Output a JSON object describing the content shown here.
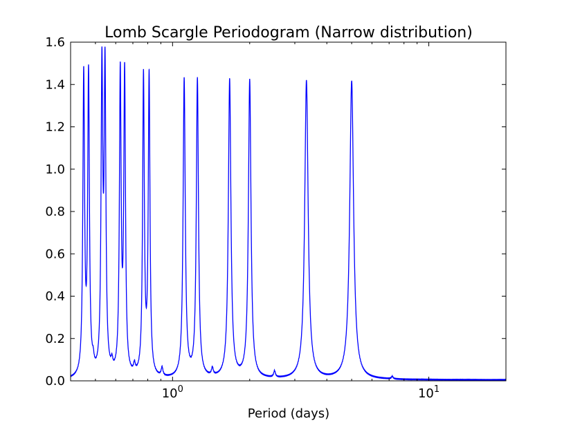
{
  "chart_data": {
    "type": "line",
    "title": "Lomb Scargle Periodogram (Narrow distribution)",
    "xlabel": "Period (days)",
    "ylabel": "",
    "x_scale": "log",
    "xlim": [
      0.4,
      20
    ],
    "ylim": [
      0,
      1.6
    ],
    "grid": false,
    "legend": "none",
    "x_ticks": [
      {
        "value": 1,
        "base": "10",
        "exponent": "0"
      },
      {
        "value": 10,
        "base": "10",
        "exponent": "1"
      }
    ],
    "y_ticks": [
      {
        "value": 0.0,
        "label": "0.0"
      },
      {
        "value": 0.2,
        "label": "0.2"
      },
      {
        "value": 0.4,
        "label": "0.4"
      },
      {
        "value": 0.6,
        "label": "0.6"
      },
      {
        "value": 0.8,
        "label": "0.8"
      },
      {
        "value": 1.0,
        "label": "1.0"
      },
      {
        "value": 1.2,
        "label": "1.2"
      },
      {
        "value": 1.4,
        "label": "1.4"
      },
      {
        "value": 1.6,
        "label": "1.6"
      }
    ],
    "series": [
      {
        "color": "#0000ff",
        "baseline": 0.004,
        "peaks": [
          {
            "period": 0.45,
            "power": 1.41,
            "width": 0.004
          },
          {
            "period": 0.47,
            "power": 1.41,
            "width": 0.004
          },
          {
            "period": 0.49,
            "power": 0.04,
            "width": 0.004
          },
          {
            "period": 0.53,
            "power": 1.41,
            "width": 0.004
          },
          {
            "period": 0.545,
            "power": 1.41,
            "width": 0.004
          },
          {
            "period": 0.58,
            "power": 0.04,
            "width": 0.004
          },
          {
            "period": 0.625,
            "power": 1.41,
            "width": 0.004
          },
          {
            "period": 0.65,
            "power": 1.41,
            "width": 0.004
          },
          {
            "period": 0.71,
            "power": 0.04,
            "width": 0.004
          },
          {
            "period": 0.77,
            "power": 1.41,
            "width": 0.004
          },
          {
            "period": 0.81,
            "power": 1.41,
            "width": 0.004
          },
          {
            "period": 0.91,
            "power": 0.04,
            "width": 0.004
          },
          {
            "period": 1.11,
            "power": 1.41,
            "width": 0.005
          },
          {
            "period": 1.25,
            "power": 1.41,
            "width": 0.005
          },
          {
            "period": 1.43,
            "power": 0.035,
            "width": 0.004
          },
          {
            "period": 1.67,
            "power": 1.41,
            "width": 0.006
          },
          {
            "period": 2.0,
            "power": 1.41,
            "width": 0.006
          },
          {
            "period": 2.5,
            "power": 0.03,
            "width": 0.004
          },
          {
            "period": 3.33,
            "power": 1.41,
            "width": 0.008
          },
          {
            "period": 5.0,
            "power": 1.41,
            "width": 0.009
          },
          {
            "period": 7.2,
            "power": 0.012,
            "width": 0.004
          }
        ]
      }
    ]
  }
}
